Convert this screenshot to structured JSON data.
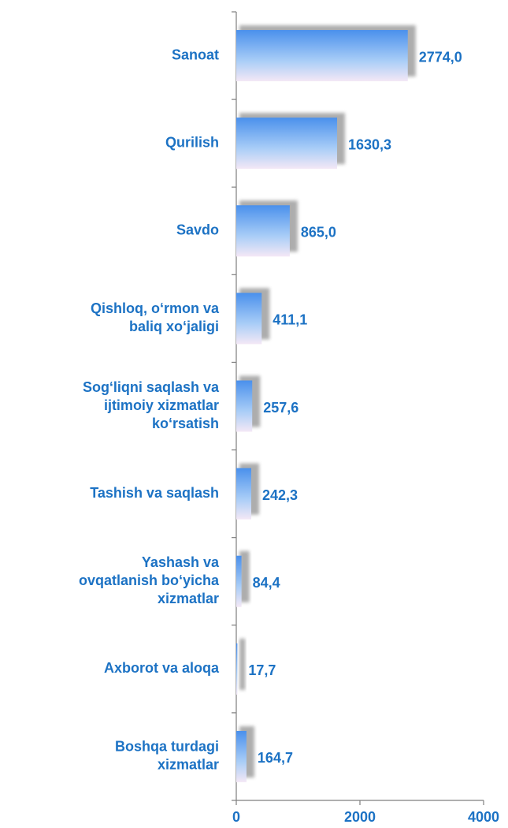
{
  "chart_data": {
    "type": "bar",
    "orientation": "horizontal",
    "categories": [
      [
        "Sanoat"
      ],
      [
        "Qurilish"
      ],
      [
        "Savdo"
      ],
      [
        "Qishloq, o‘rmon va",
        "baliq xo‘jaligi"
      ],
      [
        "Sog‘liqni saqlash va",
        "ijtimoiy xizmatlar",
        "ko‘rsatish"
      ],
      [
        "Tashish va saqlash"
      ],
      [
        "Yashash va",
        "ovqatlanish bo‘yicha",
        "xizmatlar"
      ],
      [
        "Axborot va aloqa"
      ],
      [
        "Boshqa turdagi",
        "xizmatlar"
      ]
    ],
    "values": [
      2774.0,
      1630.3,
      865.0,
      411.1,
      257.6,
      242.3,
      84.4,
      17.7,
      164.7
    ],
    "value_labels": [
      "2774,0",
      "1630,3",
      "865,0",
      "411,1",
      "257,6",
      "242,3",
      "84,4",
      "17,7",
      "164,7"
    ],
    "color": "#4a90ec",
    "xlim": [
      0,
      4000
    ],
    "xticks": [
      0,
      2000,
      4000
    ]
  }
}
